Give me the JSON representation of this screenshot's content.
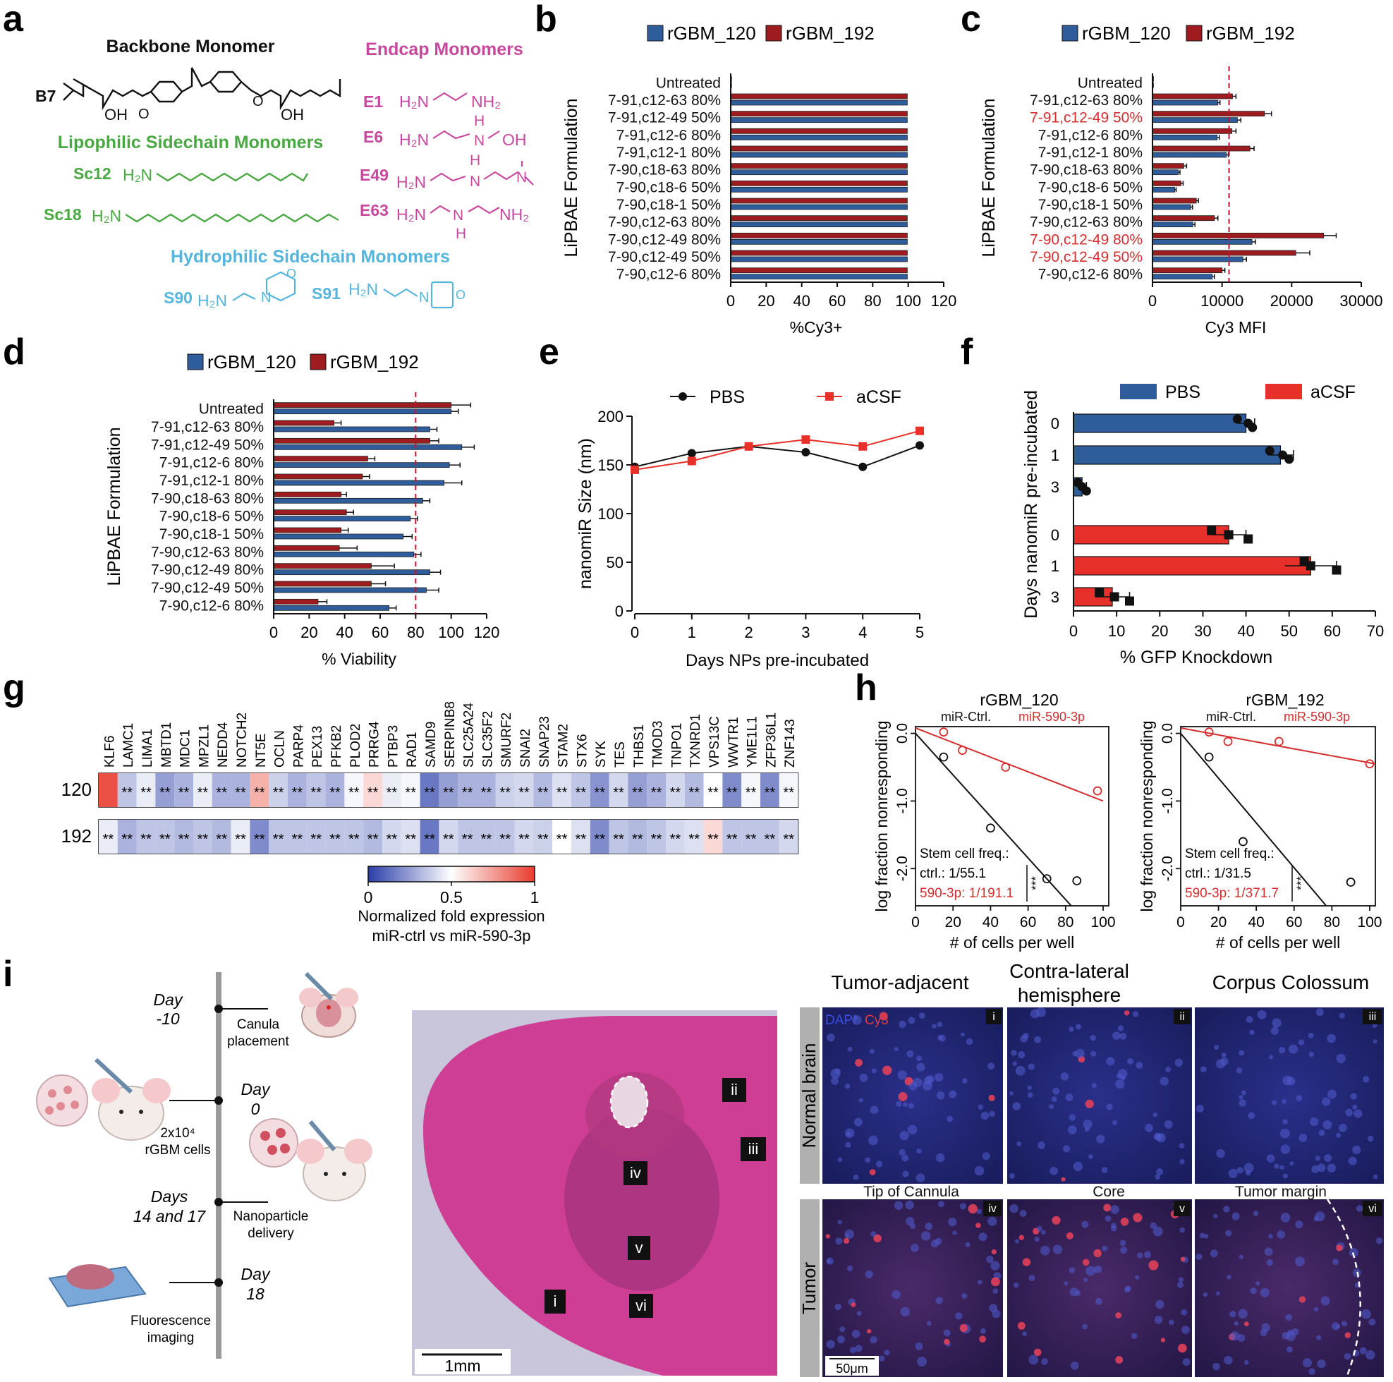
{
  "figure": {
    "panel_letters": [
      "a",
      "b",
      "c",
      "d",
      "e",
      "f",
      "g",
      "h",
      "i"
    ],
    "colors": {
      "blue": "#2f5d9b",
      "darkred": "#9e1b1f",
      "red": "#e8302b",
      "navy": "#263f7c",
      "green": "#4aa843",
      "pink": "#c8489e",
      "cyan": "#56b5dc",
      "black": "#111111",
      "redline": "#c8102e"
    }
  },
  "chemistry": {
    "backbone_title": "Backbone Monomer",
    "endcap_title": "Endcap Monomers",
    "lipophilic_title": "Lipophilic Sidechain Monomers",
    "hydrophilic_title": "Hydrophilic Sidechain Monomers",
    "backbone_label": "B7",
    "oh_labels": [
      "OH",
      "OH"
    ],
    "o_label": "O",
    "lipophilic": [
      {
        "label": "Sc12",
        "amine": "H₂N"
      },
      {
        "label": "Sc18",
        "amine": "H₂N"
      }
    ],
    "hydrophilic": [
      {
        "label": "S90",
        "amine": "H₂N",
        "atom": "N",
        "ring_atom": "O"
      },
      {
        "label": "S91",
        "amine": "H₂N",
        "atom": "N",
        "ring_atom": "O"
      }
    ],
    "endcaps": [
      {
        "label": "E1",
        "left": "H₂N",
        "right": "NH₂"
      },
      {
        "label": "E6",
        "left": "H₂N",
        "mid": "N",
        "h": "H",
        "right": "OH"
      },
      {
        "label": "E49",
        "left": "H₂N",
        "mid": "N",
        "h": "H",
        "right": "N"
      },
      {
        "label": "E63",
        "left": "H₂N",
        "mid": "N",
        "h": "H",
        "right": "NH₂"
      }
    ]
  },
  "chart_data": [
    {
      "panel": "b",
      "type": "bar",
      "orientation": "horizontal",
      "categories": [
        "Untreated",
        "7-91,c12-63 80%",
        "7-91,c12-49 50%",
        "7-91,c12-6 80%",
        "7-91,c12-1 80%",
        "7-90,c18-63 80%",
        "7-90,c18-6 50%",
        "7-90,c18-1 50%",
        "7-90,c12-63 80%",
        "7-90,c12-49 80%",
        "7-90,c12-49 50%",
        "7-90,c12-6 80%"
      ],
      "series": [
        {
          "name": "rGBM_120",
          "color": "#2f5d9b",
          "values": [
            0.5,
            99.5,
            99.5,
            99.5,
            99.5,
            99.5,
            99.5,
            99.5,
            99.5,
            99.5,
            99.5,
            99.5
          ]
        },
        {
          "name": "rGBM_192",
          "color": "#9e1b1f",
          "values": [
            0.5,
            99.5,
            99.5,
            99.5,
            99.5,
            99.5,
            99.5,
            99.5,
            99.5,
            99.5,
            99.5,
            99.5
          ]
        }
      ],
      "xlabel": "%Cy3+",
      "ylabel": "LiPBAE Formulation",
      "xlim": [
        0,
        120
      ],
      "xticks": [
        0,
        20,
        40,
        60,
        80,
        100,
        120
      ]
    },
    {
      "panel": "c",
      "type": "bar",
      "orientation": "horizontal",
      "categories": [
        "Untreated",
        "7-91,c12-63 80%",
        "7-91,c12-49 50%",
        "7-91,c12-6 80%",
        "7-91,c12-1 80%",
        "7-90,c18-63 80%",
        "7-90,c18-6 50%",
        "7-90,c18-1 50%",
        "7-90,c12-63 80%",
        "7-90,c12-49 80%",
        "7-90,c12-49 50%",
        "7-90,c12-6 80%"
      ],
      "highlighted_categories": [
        "7-91,c12-49 50%",
        "7-90,c12-49 80%",
        "7-90,c12-49 50%"
      ],
      "series": [
        {
          "name": "rGBM_120",
          "color": "#2f5d9b",
          "values": [
            150,
            9400,
            12200,
            9300,
            10600,
            3700,
            3200,
            5500,
            5800,
            14300,
            13000,
            8600
          ],
          "errors": [
            0,
            300,
            500,
            300,
            300,
            250,
            200,
            250,
            300,
            500,
            500,
            300
          ]
        },
        {
          "name": "rGBM_192",
          "color": "#9e1b1f",
          "values": [
            150,
            11500,
            16100,
            11400,
            14000,
            4500,
            4100,
            6300,
            8900,
            24600,
            20600,
            10000
          ],
          "errors": [
            0,
            500,
            1000,
            600,
            600,
            400,
            300,
            300,
            500,
            1800,
            2000,
            400
          ]
        }
      ],
      "reference_line": 11000,
      "xlabel": "Cy3 MFI",
      "ylabel": "LiPBAE Formulation",
      "xlim": [
        0,
        30000
      ],
      "xticks": [
        0,
        10000,
        20000,
        30000
      ]
    },
    {
      "panel": "d",
      "type": "bar",
      "orientation": "horizontal",
      "categories": [
        "Untreated",
        "7-91,c12-63 80%",
        "7-91,c12-49 50%",
        "7-91,c12-6 80%",
        "7-91,c12-1 80%",
        "7-90,c18-63 80%",
        "7-90,c18-6 50%",
        "7-90,c18-1 50%",
        "7-90,c12-63 80%",
        "7-90,c12-49 80%",
        "7-90,c12-49 50%",
        "7-90,c12-6 80%"
      ],
      "series": [
        {
          "name": "rGBM_120",
          "color": "#2f5d9b",
          "values": [
            100,
            88,
            106,
            99,
            96,
            84,
            77,
            73,
            79,
            88,
            86,
            65
          ],
          "errors": [
            4,
            4,
            7,
            6,
            10,
            4,
            4,
            5,
            4,
            6,
            7,
            4
          ]
        },
        {
          "name": "rGBM_192",
          "color": "#9e1b1f",
          "values": [
            100,
            34,
            88,
            53,
            50,
            38,
            41,
            38,
            37,
            55,
            55,
            25
          ],
          "errors": [
            11,
            4,
            5,
            4,
            4,
            3,
            4,
            4,
            10,
            13,
            8,
            5
          ]
        }
      ],
      "reference_line": 80,
      "xlabel": "% Viability",
      "ylabel": "LiPBAE Formulation",
      "xlim": [
        0,
        120
      ],
      "xticks": [
        0,
        20,
        40,
        60,
        80,
        100,
        120
      ]
    },
    {
      "panel": "e",
      "type": "line",
      "x": [
        0,
        1,
        2,
        3,
        4,
        5
      ],
      "series": [
        {
          "name": "PBS",
          "color": "#111111",
          "marker": "circle",
          "values": [
            148,
            162,
            169,
            163,
            148,
            170
          ]
        },
        {
          "name": "aCSF",
          "color": "#e8302b",
          "marker": "square",
          "values": [
            145,
            154,
            169,
            176,
            169,
            185
          ]
        }
      ],
      "xlabel": "Days NPs pre-incubated",
      "ylabel": "nanomiR Size (nm)",
      "xlim": [
        0,
        5
      ],
      "ylim": [
        0,
        200
      ],
      "xticks": [
        0,
        1,
        2,
        3,
        4,
        5
      ],
      "yticks": [
        0,
        50,
        100,
        150,
        200
      ]
    },
    {
      "panel": "f",
      "type": "bar",
      "orientation": "horizontal",
      "groups": [
        {
          "name": "PBS",
          "color": "#2f5d9b",
          "marker": "circle",
          "categories": [
            "0",
            "1",
            "3"
          ],
          "values": [
            40,
            48,
            2
          ],
          "errors": [
            2,
            3,
            1
          ],
          "points": [
            [
              38,
              40.5,
              41.5
            ],
            [
              45.5,
              48.5,
              50
            ],
            [
              1,
              2,
              3
            ]
          ]
        },
        {
          "name": "aCSF",
          "color": "#e8302b",
          "marker": "square",
          "categories": [
            "0",
            "1",
            "3"
          ],
          "values": [
            36,
            55,
            9
          ],
          "errors": [
            4,
            6,
            4
          ],
          "points": [
            [
              32,
              36,
              40.5
            ],
            [
              53.5,
              55,
              61
            ],
            [
              6,
              9.5,
              13
            ]
          ]
        }
      ],
      "xlabel": "% GFP Knockdown",
      "ylabel": "Days nanomiR pre-incubated",
      "xlim": [
        0,
        70
      ],
      "xticks": [
        0,
        10,
        20,
        30,
        40,
        50,
        60,
        70
      ]
    },
    {
      "panel": "g",
      "type": "heatmap",
      "columns": [
        "KLF6",
        "LAMC1",
        "LIMA1",
        "MBTD1",
        "MDC1",
        "MPZL1",
        "NEDD4",
        "NOTCH2",
        "NT5E",
        "OCLN",
        "PARP4",
        "PEX13",
        "PFKB2",
        "PLOD2",
        "PRRG4",
        "PTBP3",
        "RAD1",
        "SAMD9",
        "SERPINB8",
        "SLC25A24",
        "SLC35F2",
        "SMURF2",
        "SNAI2",
        "SNAP23",
        "STAM2",
        "STX6",
        "SYK",
        "TES",
        "THBS1",
        "TMOD3",
        "TNPO1",
        "TXNRD1",
        "VPS13C",
        "WWTR1",
        "YME1L1",
        "ZFP36L1",
        "ZNF143"
      ],
      "rows": [
        "120",
        "192"
      ],
      "values": [
        [
          0.95,
          0.35,
          0.45,
          0.25,
          0.3,
          0.45,
          0.3,
          0.3,
          0.7,
          0.38,
          0.3,
          0.35,
          0.3,
          0.48,
          0.6,
          0.45,
          0.48,
          0.15,
          0.25,
          0.3,
          0.3,
          0.38,
          0.4,
          0.32,
          0.42,
          0.35,
          0.22,
          0.4,
          0.25,
          0.3,
          0.4,
          0.32,
          0.5,
          0.2,
          0.48,
          0.2,
          0.48
        ],
        [
          0.45,
          0.3,
          0.35,
          0.35,
          0.32,
          0.35,
          0.32,
          0.45,
          0.2,
          0.35,
          0.35,
          0.35,
          0.35,
          0.35,
          0.32,
          0.4,
          0.42,
          0.15,
          0.4,
          0.35,
          0.35,
          0.35,
          0.4,
          0.38,
          0.5,
          0.42,
          0.2,
          0.35,
          0.32,
          0.35,
          0.4,
          0.42,
          0.6,
          0.35,
          0.35,
          0.35,
          0.4
        ]
      ],
      "significance": [
        [
          "",
          "**",
          "**",
          "**",
          "**",
          "**",
          "**",
          "**",
          "**",
          "**",
          "**",
          "**",
          "**",
          "**",
          "**",
          "**",
          "**",
          "**",
          "**",
          "**",
          "**",
          "**",
          "**",
          "**",
          "**",
          "**",
          "**",
          "**",
          "**",
          "**",
          "**",
          "**",
          "**",
          "**",
          "**",
          "**",
          "**"
        ],
        [
          "**",
          "**",
          "**",
          "**",
          "**",
          "**",
          "**",
          "**",
          "**",
          "**",
          "**",
          "**",
          "**",
          "**",
          "**",
          "**",
          "**",
          "**",
          "**",
          "**",
          "**",
          "**",
          "**",
          "**",
          "**",
          "**",
          "**",
          "**",
          "**",
          "**",
          "**",
          "**",
          "**",
          "**",
          "**",
          "**",
          "**"
        ]
      ],
      "colorbar": {
        "min": 0,
        "mid": 0.5,
        "max": 1,
        "tick_labels": [
          "0",
          "0.5",
          "1"
        ],
        "colors": [
          "#2a3ea9",
          "#ffffff",
          "#e83c2e"
        ]
      },
      "caption_line1": "Normalized fold expression",
      "caption_line2": "miR-ctrl vs miR-590-3p"
    },
    {
      "panel": "h",
      "type": "scatter",
      "title": "rGBM_120",
      "series": [
        {
          "name": "miR-Ctrl.",
          "color": "#111111",
          "points": [
            [
              15,
              -0.35
            ],
            [
              40,
              -1.4
            ],
            [
              70,
              -2.15
            ],
            [
              86,
              -2.18
            ]
          ],
          "fit": [
            [
              0,
              0
            ],
            [
              83,
              -2.55
            ]
          ]
        },
        {
          "name": "miR-590-3p",
          "color": "#d32f2f",
          "points": [
            [
              15,
              0.02
            ],
            [
              25,
              -0.25
            ],
            [
              48,
              -0.5
            ],
            [
              97,
              -0.85
            ]
          ],
          "fit": [
            [
              0,
              0.08
            ],
            [
              100,
              -1.0
            ]
          ]
        }
      ],
      "xlabel": "# of cells per well",
      "ylabel": "log fraction nonresponding",
      "xlim": [
        0,
        103
      ],
      "ylim": [
        -2.55,
        0.1
      ],
      "xticks": [
        0,
        20,
        40,
        60,
        80,
        100
      ],
      "yticks": [
        0.0,
        -1.0,
        -2.0
      ],
      "xtick_labels": [
        "0",
        "20",
        "40",
        "60",
        "80",
        "100"
      ],
      "ytick_labels": [
        "0.0",
        "-1.0",
        "-2.0"
      ],
      "annotation": {
        "title": "Stem cell freq.:",
        "ctrl": "ctrl.: 1/55.1",
        "mir": "590-3p: 1/191.1",
        "sig": "***"
      }
    },
    {
      "panel": "h",
      "type": "scatter",
      "title": "rGBM_192",
      "series": [
        {
          "name": "miR-Ctrl.",
          "color": "#111111",
          "points": [
            [
              15,
              -0.35
            ],
            [
              33,
              -1.6
            ],
            [
              90,
              -2.2
            ]
          ],
          "fit": [
            [
              0,
              0
            ],
            [
              77,
              -2.55
            ]
          ]
        },
        {
          "name": "miR-590-3p",
          "color": "#d32f2f",
          "points": [
            [
              15,
              0.02
            ],
            [
              25,
              -0.12
            ],
            [
              52,
              -0.12
            ],
            [
              100,
              -0.45
            ]
          ],
          "fit": [
            [
              0,
              0.08
            ],
            [
              103,
              -0.45
            ]
          ]
        }
      ],
      "xlabel": "# of cells per well",
      "ylabel": "log fraction nonresponding",
      "xlim": [
        0,
        103
      ],
      "ylim": [
        -2.55,
        0.1
      ],
      "xticks": [
        0,
        20,
        40,
        60,
        80,
        100
      ],
      "yticks": [
        0.0,
        -1.0,
        -2.0
      ],
      "xtick_labels": [
        "0",
        "20",
        "40",
        "60",
        "80",
        "100"
      ],
      "ytick_labels": [
        "0.0",
        "-1.0",
        "-2.0"
      ],
      "annotation": {
        "title": "Stem cell freq.:",
        "ctrl": "ctrl.: 1/31.5",
        "mir": "590-3p: 1/371.7",
        "sig": "***"
      }
    }
  ],
  "panel_i": {
    "timeline": [
      {
        "day": [
          "Day",
          "-10"
        ],
        "event": [
          "Canula",
          "placement"
        ]
      },
      {
        "day": [
          "Day",
          "0"
        ],
        "event": [
          "2x10⁴",
          "rGBM cells"
        ]
      },
      {
        "day": [
          "Days",
          "14 and 17"
        ],
        "event": [
          "Nanoparticle",
          "delivery"
        ]
      },
      {
        "day": [
          "Day",
          "18"
        ],
        "event": [
          "Fluorescence",
          "imaging"
        ]
      }
    ],
    "histology_regions": [
      "ii",
      "iii",
      "iv",
      "v",
      "i",
      "vi"
    ],
    "histology_scale": "1mm",
    "column_titles": [
      "Tumor-adjacent",
      "Contra-lateral",
      "hemisphere",
      "Corpus Colossum"
    ],
    "row_labels": [
      "Normal brain",
      "Tumor"
    ],
    "lower_titles": [
      "Tip of Cannula",
      "Core",
      "Tumor margin"
    ],
    "tile_labels": [
      "i",
      "ii",
      "iii",
      "iv",
      "v",
      "vi"
    ],
    "legend_dapi": "DAPI",
    "legend_cy3": "Cy3",
    "micro_scale": "50μm"
  }
}
